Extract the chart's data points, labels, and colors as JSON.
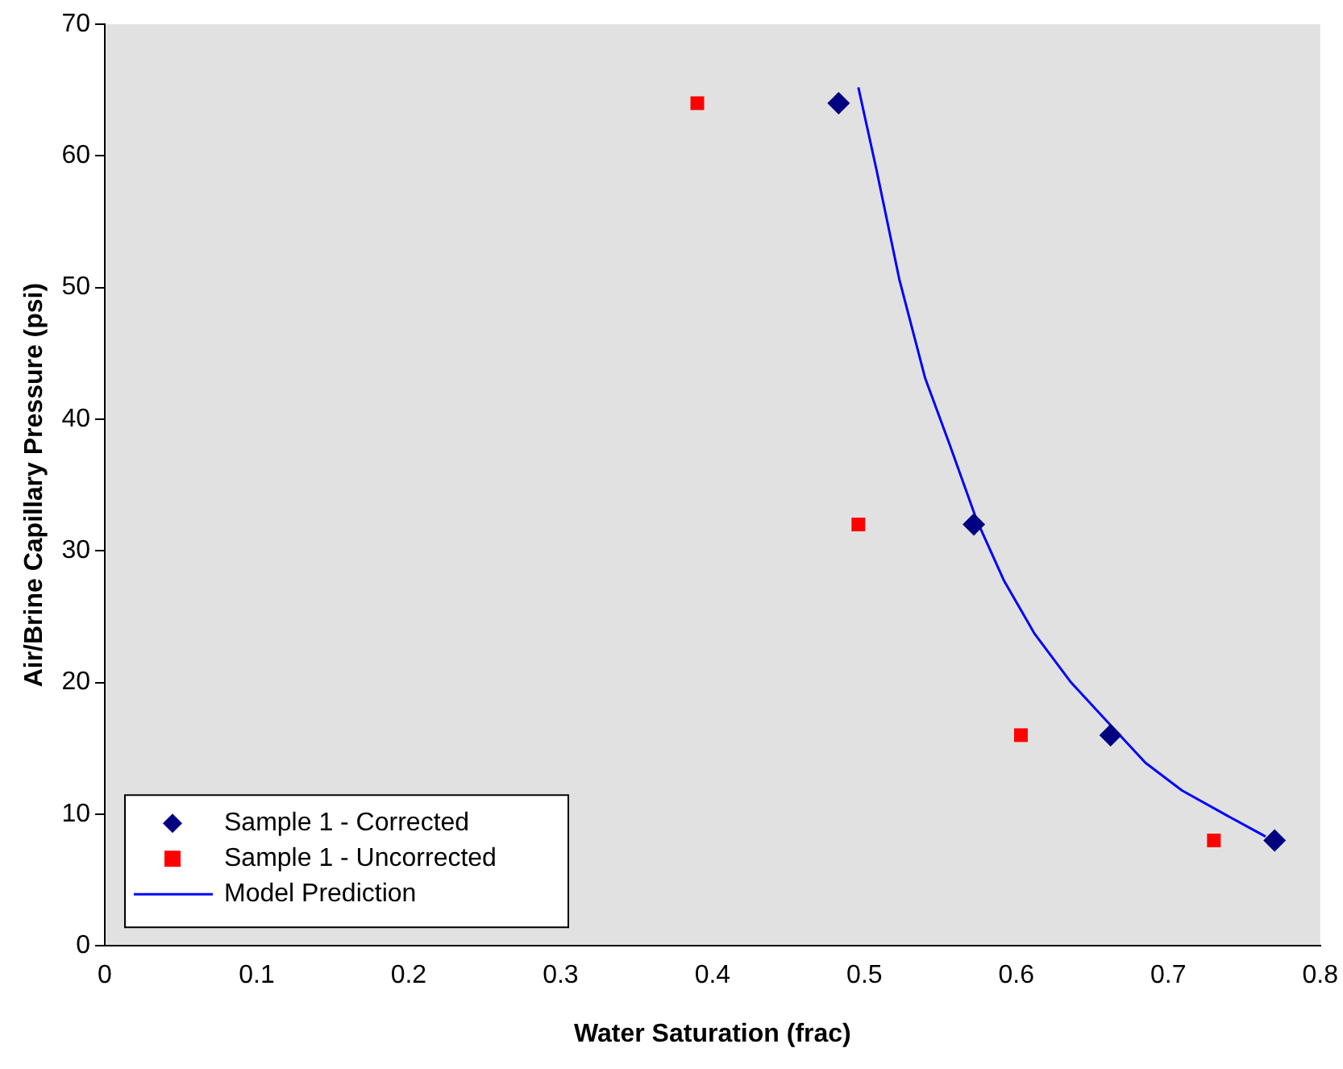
{
  "chart_data": {
    "type": "scatter",
    "xlabel": "Water Saturation (frac)",
    "ylabel": "Air/Brine Capillary Pressure (psi)",
    "xlim": [
      0,
      0.8
    ],
    "xticks": [
      0,
      0.1,
      0.2,
      0.3,
      0.4,
      0.5,
      0.6,
      0.7,
      0.8
    ],
    "ylim": [
      0,
      70
    ],
    "yticks": [
      0,
      10,
      20,
      30,
      40,
      50,
      60,
      70
    ],
    "grid": false,
    "legend": "bottom left",
    "series": [
      {
        "name": "Sample 1 - Corrected",
        "color": "#000080",
        "marker": "diamond",
        "x": [
          0.483,
          0.572,
          0.662,
          0.77
        ],
        "values": [
          64,
          32,
          16,
          8
        ]
      },
      {
        "name": "Sample 1 - Uncorrected",
        "color": "#ff0000",
        "marker": "square",
        "x": [
          0.39,
          0.496,
          0.603,
          0.73
        ],
        "values": [
          64,
          32,
          16,
          8
        ]
      },
      {
        "name": "Model Prediction",
        "type": "line",
        "color": "#0000ff",
        "marker": "none",
        "line_style": "solid",
        "x": [
          0.496,
          0.508,
          0.523,
          0.54,
          0.556,
          0.574,
          0.592,
          0.612,
          0.636,
          0.66,
          0.685,
          0.709,
          0.737,
          0.764
        ],
        "values": [
          65.2,
          58.9,
          50.6,
          43.1,
          38.1,
          32.3,
          27.7,
          23.7,
          20.0,
          17.0,
          13.9,
          11.8,
          10.0,
          8.3
        ]
      }
    ]
  }
}
